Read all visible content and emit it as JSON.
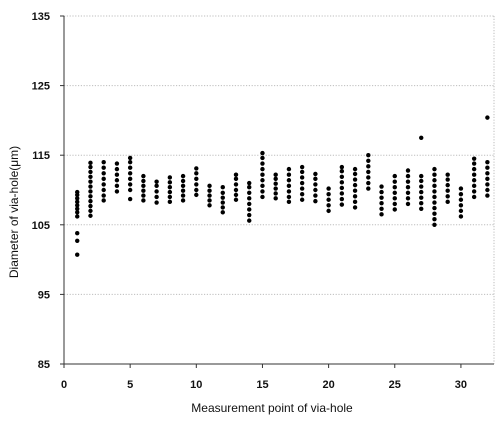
{
  "chart_data": {
    "type": "scatter",
    "title": "",
    "xlabel": "Measurement point of via-hole",
    "ylabel": "Diameter of via-hole(μm)",
    "xlim": [
      0,
      32.5
    ],
    "ylim": [
      85,
      135
    ],
    "x_ticks": [
      0,
      5,
      10,
      15,
      20,
      25,
      30
    ],
    "y_ticks": [
      85,
      95,
      105,
      115,
      125,
      135
    ],
    "grid": {
      "horizontal": true,
      "vertical": false
    },
    "colors": {
      "marker": "#000000",
      "grid": "#bdbdbd"
    },
    "series": [
      {
        "points": [
          [
            1,
            106.2
          ],
          [
            1,
            106.8
          ],
          [
            1,
            107.3
          ],
          [
            1,
            107.8
          ],
          [
            1,
            108.3
          ],
          [
            1,
            108.8
          ],
          [
            1,
            109.3
          ],
          [
            1,
            109.7
          ],
          [
            1,
            103.8
          ],
          [
            1,
            102.7
          ],
          [
            1,
            100.7
          ],
          [
            2,
            106.3
          ],
          [
            2,
            107.0
          ],
          [
            2,
            107.7
          ],
          [
            2,
            108.4
          ],
          [
            2,
            109.1
          ],
          [
            2,
            109.8
          ],
          [
            2,
            110.5
          ],
          [
            2,
            111.2
          ],
          [
            2,
            111.9
          ],
          [
            2,
            112.6
          ],
          [
            2,
            113.3
          ],
          [
            2,
            113.9
          ],
          [
            3,
            108.5
          ],
          [
            3,
            109.2
          ],
          [
            3,
            110.0
          ],
          [
            3,
            110.8
          ],
          [
            3,
            111.6
          ],
          [
            3,
            112.4
          ],
          [
            3,
            113.2
          ],
          [
            3,
            114.0
          ],
          [
            4,
            109.8
          ],
          [
            4,
            110.6
          ],
          [
            4,
            111.4
          ],
          [
            4,
            112.2
          ],
          [
            4,
            113.0
          ],
          [
            4,
            113.8
          ],
          [
            5,
            108.7
          ],
          [
            5,
            110.0
          ],
          [
            5,
            110.8
          ],
          [
            5,
            111.6
          ],
          [
            5,
            112.4
          ],
          [
            5,
            113.2
          ],
          [
            5,
            114.0
          ],
          [
            5,
            114.6
          ],
          [
            6,
            108.5
          ],
          [
            6,
            109.2
          ],
          [
            6,
            109.9
          ],
          [
            6,
            110.6
          ],
          [
            6,
            111.3
          ],
          [
            6,
            112.0
          ],
          [
            7,
            108.2
          ],
          [
            7,
            109.0
          ],
          [
            7,
            109.8
          ],
          [
            7,
            110.6
          ],
          [
            7,
            111.2
          ],
          [
            8,
            108.3
          ],
          [
            8,
            109.0
          ],
          [
            8,
            109.7
          ],
          [
            8,
            110.4
          ],
          [
            8,
            111.1
          ],
          [
            8,
            111.8
          ],
          [
            9,
            108.5
          ],
          [
            9,
            109.2
          ],
          [
            9,
            109.9
          ],
          [
            9,
            110.6
          ],
          [
            9,
            111.3
          ],
          [
            9,
            112.0
          ],
          [
            10,
            109.3
          ],
          [
            10,
            110.0
          ],
          [
            10,
            110.8
          ],
          [
            10,
            111.6
          ],
          [
            10,
            112.4
          ],
          [
            10,
            113.1
          ],
          [
            11,
            107.8
          ],
          [
            11,
            108.5
          ],
          [
            11,
            109.2
          ],
          [
            11,
            109.9
          ],
          [
            11,
            110.6
          ],
          [
            12,
            106.8
          ],
          [
            12,
            107.5
          ],
          [
            12,
            108.2
          ],
          [
            12,
            108.9
          ],
          [
            12,
            109.6
          ],
          [
            12,
            110.4
          ],
          [
            13,
            108.6
          ],
          [
            13,
            109.3
          ],
          [
            13,
            110.0
          ],
          [
            13,
            110.8
          ],
          [
            13,
            111.6
          ],
          [
            13,
            112.2
          ],
          [
            14,
            105.6
          ],
          [
            14,
            106.4
          ],
          [
            14,
            107.2
          ],
          [
            14,
            108.0
          ],
          [
            14,
            108.8
          ],
          [
            14,
            109.6
          ],
          [
            14,
            110.4
          ],
          [
            14,
            111.0
          ],
          [
            15,
            109.0
          ],
          [
            15,
            109.8
          ],
          [
            15,
            110.6
          ],
          [
            15,
            111.4
          ],
          [
            15,
            112.2
          ],
          [
            15,
            113.0
          ],
          [
            15,
            113.8
          ],
          [
            15,
            114.6
          ],
          [
            15,
            115.3
          ],
          [
            16,
            108.8
          ],
          [
            16,
            109.5
          ],
          [
            16,
            110.2
          ],
          [
            16,
            110.9
          ],
          [
            16,
            111.6
          ],
          [
            16,
            112.2
          ],
          [
            17,
            108.3
          ],
          [
            17,
            109.0
          ],
          [
            17,
            109.8
          ],
          [
            17,
            110.6
          ],
          [
            17,
            111.4
          ],
          [
            17,
            112.2
          ],
          [
            17,
            113.0
          ],
          [
            18,
            108.6
          ],
          [
            18,
            109.4
          ],
          [
            18,
            110.2
          ],
          [
            18,
            111.0
          ],
          [
            18,
            111.8
          ],
          [
            18,
            112.6
          ],
          [
            18,
            113.3
          ],
          [
            19,
            108.4
          ],
          [
            19,
            109.2
          ],
          [
            19,
            110.0
          ],
          [
            19,
            110.8
          ],
          [
            19,
            111.6
          ],
          [
            19,
            112.3
          ],
          [
            20,
            107.0
          ],
          [
            20,
            107.8
          ],
          [
            20,
            108.6
          ],
          [
            20,
            109.4
          ],
          [
            20,
            110.2
          ],
          [
            21,
            107.9
          ],
          [
            21,
            108.7
          ],
          [
            21,
            109.5
          ],
          [
            21,
            110.3
          ],
          [
            21,
            111.1
          ],
          [
            21,
            111.9
          ],
          [
            21,
            112.7
          ],
          [
            21,
            113.3
          ],
          [
            22,
            107.5
          ],
          [
            22,
            108.3
          ],
          [
            22,
            109.1
          ],
          [
            22,
            109.9
          ],
          [
            22,
            110.7
          ],
          [
            22,
            111.5
          ],
          [
            22,
            112.3
          ],
          [
            22,
            113.0
          ],
          [
            23,
            110.2
          ],
          [
            23,
            111.0
          ],
          [
            23,
            111.8
          ],
          [
            23,
            112.6
          ],
          [
            23,
            113.4
          ],
          [
            23,
            114.2
          ],
          [
            23,
            115.0
          ],
          [
            24,
            106.5
          ],
          [
            24,
            107.3
          ],
          [
            24,
            108.1
          ],
          [
            24,
            108.9
          ],
          [
            24,
            109.7
          ],
          [
            24,
            110.5
          ],
          [
            25,
            107.2
          ],
          [
            25,
            108.0
          ],
          [
            25,
            108.8
          ],
          [
            25,
            109.6
          ],
          [
            25,
            110.4
          ],
          [
            25,
            111.2
          ],
          [
            25,
            112.0
          ],
          [
            26,
            108.0
          ],
          [
            26,
            108.8
          ],
          [
            26,
            109.6
          ],
          [
            26,
            110.4
          ],
          [
            26,
            111.2
          ],
          [
            26,
            112.0
          ],
          [
            26,
            112.8
          ],
          [
            27,
            107.3
          ],
          [
            27,
            108.1
          ],
          [
            27,
            108.9
          ],
          [
            27,
            109.7
          ],
          [
            27,
            110.5
          ],
          [
            27,
            111.3
          ],
          [
            27,
            112.0
          ],
          [
            27,
            117.5
          ],
          [
            28,
            105.0
          ],
          [
            28,
            105.8
          ],
          [
            28,
            106.6
          ],
          [
            28,
            107.4
          ],
          [
            28,
            108.2
          ],
          [
            28,
            109.0
          ],
          [
            28,
            109.8
          ],
          [
            28,
            110.6
          ],
          [
            28,
            111.4
          ],
          [
            28,
            112.2
          ],
          [
            28,
            113.0
          ],
          [
            29,
            108.3
          ],
          [
            29,
            109.1
          ],
          [
            29,
            109.9
          ],
          [
            29,
            110.7
          ],
          [
            29,
            111.5
          ],
          [
            29,
            112.2
          ],
          [
            30,
            106.2
          ],
          [
            30,
            107.0
          ],
          [
            30,
            107.8
          ],
          [
            30,
            108.6
          ],
          [
            30,
            109.4
          ],
          [
            30,
            110.2
          ],
          [
            31,
            109.0
          ],
          [
            31,
            109.8
          ],
          [
            31,
            110.6
          ],
          [
            31,
            111.4
          ],
          [
            31,
            112.2
          ],
          [
            31,
            113.0
          ],
          [
            31,
            113.8
          ],
          [
            31,
            114.5
          ],
          [
            32,
            109.2
          ],
          [
            32,
            110.0
          ],
          [
            32,
            110.8
          ],
          [
            32,
            111.6
          ],
          [
            32,
            112.4
          ],
          [
            32,
            113.2
          ],
          [
            32,
            114.0
          ],
          [
            32,
            120.4
          ]
        ]
      }
    ]
  }
}
